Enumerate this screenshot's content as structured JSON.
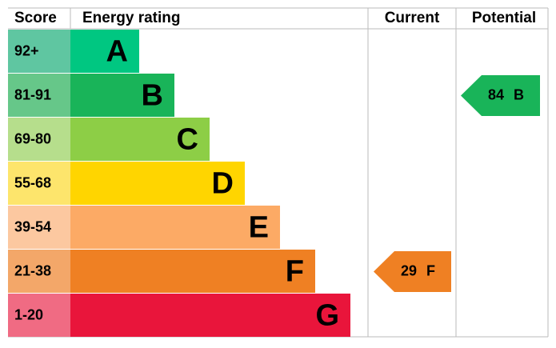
{
  "header": {
    "score": "Score",
    "rating": "Energy rating",
    "current": "Current",
    "potential": "Potential"
  },
  "rows": [
    {
      "score": "92+",
      "letter": "A",
      "color": "#00c781",
      "light": "#5fc6a1"
    },
    {
      "score": "81-91",
      "letter": "B",
      "color": "#19b459",
      "light": "#66c789"
    },
    {
      "score": "69-80",
      "letter": "C",
      "color": "#8dce46",
      "light": "#b6de8c"
    },
    {
      "score": "55-68",
      "letter": "D",
      "color": "#ffd500",
      "light": "#fde56c"
    },
    {
      "score": "39-54",
      "letter": "E",
      "color": "#fcaa65",
      "light": "#fcc8a0"
    },
    {
      "score": "21-38",
      "letter": "F",
      "color": "#ef8023",
      "light": "#f3a769"
    },
    {
      "score": "1-20",
      "letter": "G",
      "color": "#e9153b",
      "light": "#f06b83"
    }
  ],
  "current": {
    "value": 29,
    "band": "F"
  },
  "potential": {
    "value": 84,
    "band": "B"
  }
}
